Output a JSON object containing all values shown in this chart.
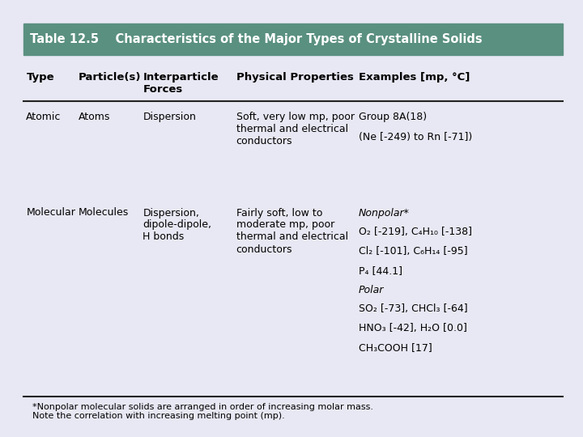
{
  "title": "Table 12.5    Characteristics of the Major Types of Crystalline Solids",
  "title_bg": "#5a9080",
  "title_color": "white",
  "bg_color": "#e8e8f4",
  "header": [
    "Type",
    "Particle(s)",
    "Interparticle\nForces",
    "Physical Properties",
    "Examples [mp, °C]"
  ],
  "rows": [
    {
      "type": "Atomic",
      "particles": "Atoms",
      "forces": "Dispersion",
      "properties": "Soft, very low mp, poor\nthermal and electrical\nconductors",
      "examples_lines": [
        {
          "text": "Group 8A(18)",
          "style": "normal"
        },
        {
          "text": "(Ne [-249) to Rn [-71])",
          "style": "normal"
        }
      ]
    },
    {
      "type": "Molecular",
      "particles": "Molecules",
      "forces": "Dispersion,\ndipole-dipole,\nH bonds",
      "properties": "Fairly soft, low to\nmoderate mp, poor\nthermal and electrical\nconductors",
      "examples_lines": [
        {
          "text": "Nonpolar*",
          "style": "italic"
        },
        {
          "text": "O₂ [-219], C₄H₁₀ [-138]",
          "style": "normal"
        },
        {
          "text": "Cl₂ [-101], C₆H₁₄ [-95]",
          "style": "normal"
        },
        {
          "text": "P₄ [44.1]",
          "style": "normal"
        },
        {
          "text": "Polar",
          "style": "italic"
        },
        {
          "text": "SO₂ [-73], CHCl₃ [-64]",
          "style": "normal"
        },
        {
          "text": "HNO₃ [-42], H₂O [0.0]",
          "style": "normal"
        },
        {
          "text": "CH₃COOH [17]",
          "style": "normal"
        }
      ]
    }
  ],
  "footnote": "*Nonpolar molecular solids are arranged in order of increasing molar mass.\nNote the correlation with increasing melting point (mp).",
  "col_starts": [
    0.045,
    0.135,
    0.245,
    0.405,
    0.615
  ],
  "line_color": "#222222",
  "font_size": 9.0,
  "header_font_size": 9.5,
  "title_fontsize": 10.5
}
